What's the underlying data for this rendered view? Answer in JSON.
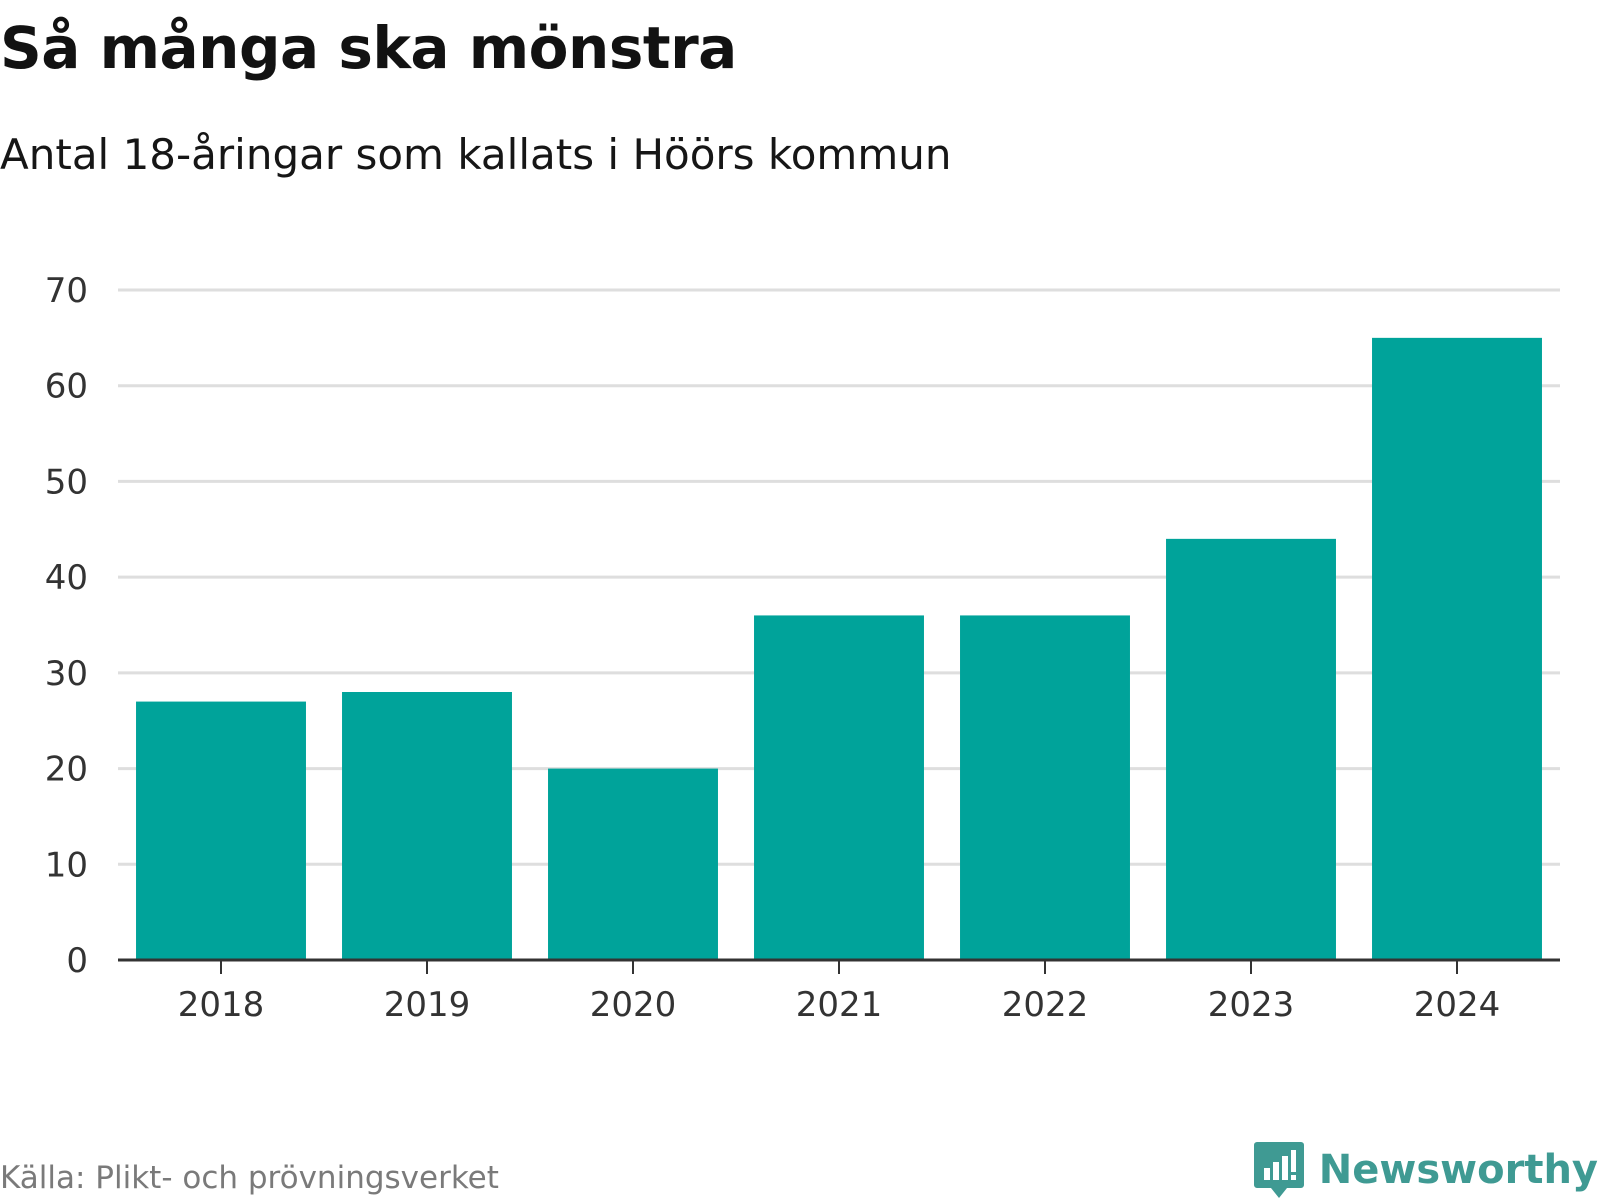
{
  "header": {
    "title": "Så många ska mönstra",
    "subtitle": "Antal 18-åringar som kallats i Höörs kommun"
  },
  "footer": {
    "source": "Källa: Plikt- och prövningsverket",
    "brand": "Newsworthy",
    "brand_icon": "newsworthy-logo-icon"
  },
  "colors": {
    "bar": "#00a39a",
    "grid": "#dedede",
    "axis": "#333333",
    "tick_text": "#333333",
    "brand": "#3f9a93"
  },
  "chart_data": {
    "type": "bar",
    "title": "Så många ska mönstra",
    "subtitle": "Antal 18-åringar som kallats i Höörs kommun",
    "categories": [
      "2018",
      "2019",
      "2020",
      "2021",
      "2022",
      "2023",
      "2024"
    ],
    "values": [
      27,
      28,
      20,
      36,
      36,
      44,
      65
    ],
    "xlabel": "",
    "ylabel": "",
    "ylim": [
      0,
      70
    ],
    "yticks": [
      0,
      10,
      20,
      30,
      40,
      50,
      60,
      70
    ],
    "grid": true,
    "legend": "none"
  }
}
